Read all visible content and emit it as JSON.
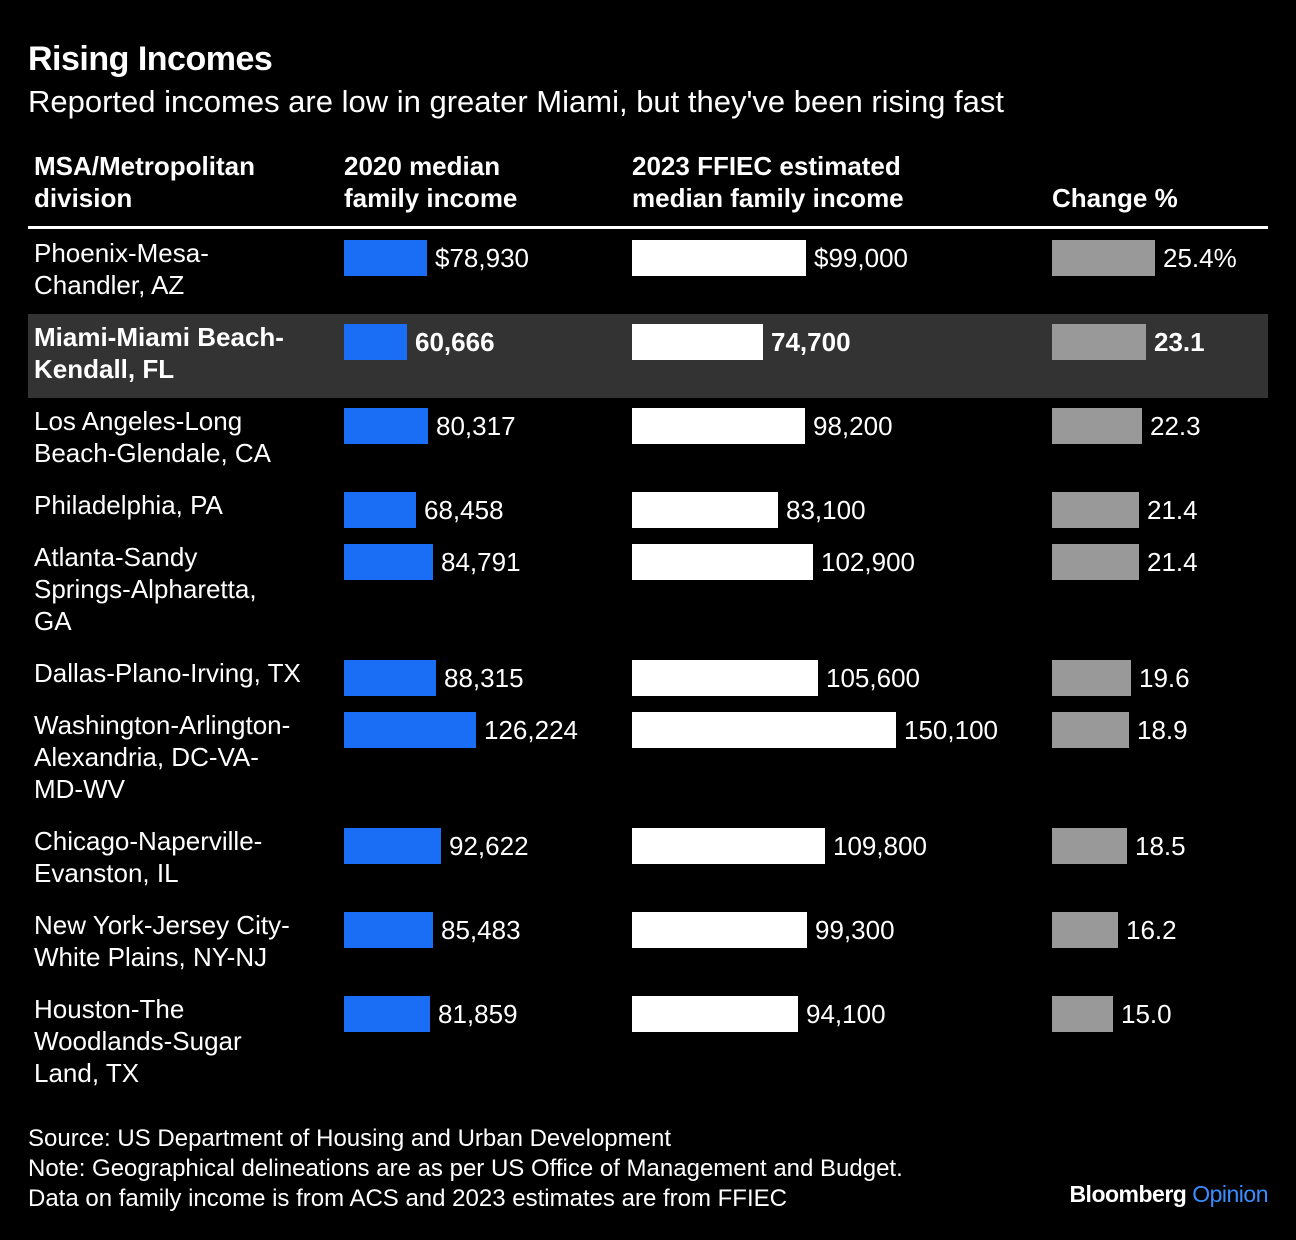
{
  "title": "Rising Incomes",
  "subtitle": "Reported incomes are low in greater Miami, but they've been rising fast",
  "columns": {
    "name": [
      "MSA/Metropolitan",
      "division"
    ],
    "income_2020": [
      "2020 median",
      "family income"
    ],
    "income_2023": [
      "2023 FFIEC estimated",
      "median family income"
    ],
    "change": [
      "Change %"
    ]
  },
  "colors": {
    "income_2020": "#1a6ef5",
    "income_2023": "#ffffff",
    "change": "#999999",
    "highlight_row": "#333333",
    "brand_accent": "#3a8dff"
  },
  "chart_data": {
    "type": "table",
    "highlight_row": 1,
    "rows": [
      {
        "name": [
          "Phoenix-Mesa-",
          "Chandler, AZ"
        ],
        "income_2020": 78930,
        "income_2020_label": "$78,930",
        "income_2023": 99000,
        "income_2023_label": "$99,000",
        "change": 25.4,
        "change_label": "25.4%"
      },
      {
        "name": [
          "Miami-Miami Beach-",
          "Kendall, FL"
        ],
        "income_2020": 60666,
        "income_2020_label": "60,666",
        "income_2023": 74700,
        "income_2023_label": "74,700",
        "change": 23.1,
        "change_label": "23.1"
      },
      {
        "name": [
          "Los Angeles-Long",
          "Beach-Glendale, CA"
        ],
        "income_2020": 80317,
        "income_2020_label": "80,317",
        "income_2023": 98200,
        "income_2023_label": "98,200",
        "change": 22.3,
        "change_label": "22.3"
      },
      {
        "name": [
          "Philadelphia, PA"
        ],
        "income_2020": 68458,
        "income_2020_label": "68,458",
        "income_2023": 83100,
        "income_2023_label": "83,100",
        "change": 21.4,
        "change_label": "21.4"
      },
      {
        "name": [
          "Atlanta-Sandy",
          "Springs-Alpharetta,",
          "GA"
        ],
        "income_2020": 84791,
        "income_2020_label": "84,791",
        "income_2023": 102900,
        "income_2023_label": "102,900",
        "change": 21.4,
        "change_label": "21.4"
      },
      {
        "name": [
          "Dallas-Plano-Irving, TX"
        ],
        "income_2020": 88315,
        "income_2020_label": "88,315",
        "income_2023": 105600,
        "income_2023_label": "105,600",
        "change": 19.6,
        "change_label": "19.6"
      },
      {
        "name": [
          "Washington-Arlington-",
          "Alexandria, DC-VA-",
          "MD-WV"
        ],
        "income_2020": 126224,
        "income_2020_label": "126,224",
        "income_2023": 150100,
        "income_2023_label": "150,100",
        "change": 18.9,
        "change_label": "18.9"
      },
      {
        "name": [
          "Chicago-Naperville-",
          "Evanston, IL"
        ],
        "income_2020": 92622,
        "income_2020_label": "92,622",
        "income_2023": 109800,
        "income_2023_label": "109,800",
        "change": 18.5,
        "change_label": "18.5"
      },
      {
        "name": [
          "New York-Jersey City-",
          "White Plains, NY-NJ"
        ],
        "income_2020": 85483,
        "income_2020_label": "85,483",
        "income_2023": 99300,
        "income_2023_label": "99,300",
        "change": 16.2,
        "change_label": "16.2"
      },
      {
        "name": [
          "Houston-The",
          "Woodlands-Sugar",
          "Land, TX"
        ],
        "income_2020": 81859,
        "income_2020_label": "81,859",
        "income_2023": 94100,
        "income_2023_label": "94,100",
        "change": 15.0,
        "change_label": "15.0"
      }
    ]
  },
  "footer": {
    "source": "Source: US Department of Housing and Urban Development",
    "note": "Note: Geographical delineations are as per US Office of Management and Budget.",
    "data_note": "Data on family income is from ACS and 2023 estimates are from FFIEC"
  },
  "brand": {
    "name": "Bloomberg",
    "section": "Opinion"
  }
}
